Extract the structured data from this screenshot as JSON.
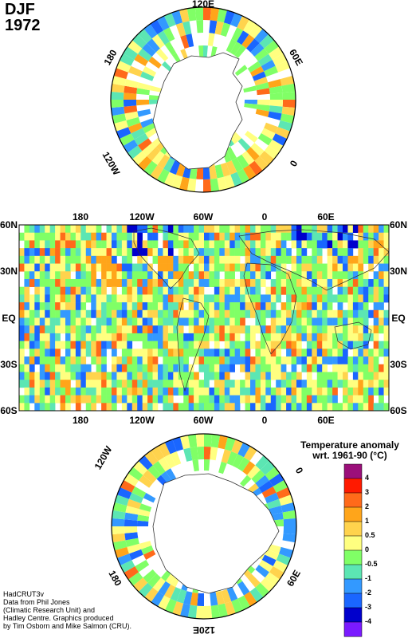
{
  "title": {
    "season": "DJF",
    "year": "1972"
  },
  "north_polar": {
    "labels": {
      "top": "120E",
      "right": "60E",
      "lower_right": "0",
      "left": "180",
      "lower_left": "120W"
    }
  },
  "world_map": {
    "top_lon_labels": [
      "180",
      "120W",
      "60W",
      "0",
      "60E"
    ],
    "bottom_lon_labels": [
      "180",
      "120W",
      "60W",
      "0",
      "60E"
    ],
    "lat_labels": [
      "60N",
      "30N",
      "EQ",
      "30S",
      "60S"
    ]
  },
  "south_polar": {
    "labels": {
      "upper_left": "120W",
      "upper_right": "0",
      "left": "180",
      "right": "60E",
      "bottom": "120E"
    }
  },
  "legend": {
    "title_line1": "Temperature anomaly",
    "title_line2": "wrt. 1961-90  (°C)",
    "colors": [
      "#9b0f7a",
      "#ff1a00",
      "#ff6a1a",
      "#ffa51a",
      "#ffd34d",
      "#ffff80",
      "#80ff66",
      "#5ce6b3",
      "#3399ff",
      "#1a66ff",
      "#0000cc",
      "#7a1aff"
    ],
    "labels": [
      "4",
      "3",
      "2",
      "1",
      "0.5",
      "0",
      "-0.5",
      "-1",
      "-2",
      "-3",
      "-4"
    ]
  },
  "credit": [
    "HadCRUT3v",
    "Data from Phil Jones",
    "(Climatic Research Unit) and",
    "Hadley Centre.  Graphics produced",
    "by Tim Osborn and Mike Salmon (CRU)."
  ]
}
